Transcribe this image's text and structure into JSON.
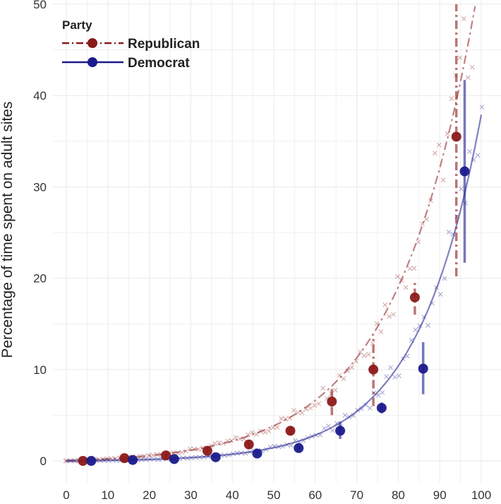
{
  "chart_data": {
    "type": "scatter",
    "title": "",
    "xlabel": "",
    "ylabel": "Percentage of time spent on adult sites",
    "xlim": [
      -3,
      103
    ],
    "ylim": [
      -2,
      50
    ],
    "x_ticks": [
      0,
      10,
      20,
      30,
      40,
      50,
      60,
      70,
      80,
      90,
      100
    ],
    "y_ticks": [
      0,
      10,
      20,
      30,
      40,
      50
    ],
    "grid": true,
    "legend": {
      "title": "Party",
      "placement": "top-left",
      "entries": [
        "Republican",
        "Democrat"
      ]
    },
    "series": [
      {
        "name": "Republican",
        "color": "#8b1a1a",
        "line_style": "dash-dot",
        "points": [
          {
            "x": 4,
            "y": 0.0,
            "err": [
              0.0,
              0.0
            ]
          },
          {
            "x": 14,
            "y": 0.3,
            "err": [
              0.2,
              0.4
            ]
          },
          {
            "x": 24,
            "y": 0.6,
            "err": [
              0.4,
              0.8
            ]
          },
          {
            "x": 34,
            "y": 1.1,
            "err": [
              0.8,
              1.4
            ]
          },
          {
            "x": 44,
            "y": 1.8,
            "err": [
              1.4,
              2.2
            ]
          },
          {
            "x": 54,
            "y": 3.3,
            "err": [
              2.8,
              3.8
            ]
          },
          {
            "x": 64,
            "y": 6.5,
            "err": [
              5.0,
              8.0
            ]
          },
          {
            "x": 74,
            "y": 10.0,
            "err": [
              6.0,
              13.8
            ]
          },
          {
            "x": 84,
            "y": 17.9,
            "err": [
              16.0,
              19.8
            ]
          },
          {
            "x": 94,
            "y": 35.5,
            "err": [
              20.2,
              50.0
            ]
          }
        ],
        "fit": {
          "a": 0.32,
          "b": 0.0513
        },
        "raw_y_ratio": 1.0
      },
      {
        "name": "Democrat",
        "color": "#1a1a8c",
        "line_style": "solid",
        "points": [
          {
            "x": 6,
            "y": 0.0,
            "err": [
              0.0,
              0.0
            ]
          },
          {
            "x": 16,
            "y": 0.1,
            "err": [
              0.0,
              0.2
            ]
          },
          {
            "x": 26,
            "y": 0.2,
            "err": [
              0.1,
              0.3
            ]
          },
          {
            "x": 36,
            "y": 0.4,
            "err": [
              0.3,
              0.5
            ]
          },
          {
            "x": 46,
            "y": 0.8,
            "err": [
              0.6,
              1.0
            ]
          },
          {
            "x": 56,
            "y": 1.4,
            "err": [
              1.1,
              1.7
            ]
          },
          {
            "x": 66,
            "y": 3.3,
            "err": [
              2.4,
              4.3
            ]
          },
          {
            "x": 76,
            "y": 5.8,
            "err": [
              5.2,
              6.4
            ]
          },
          {
            "x": 86,
            "y": 10.1,
            "err": [
              7.3,
              13.0
            ]
          },
          {
            "x": 96,
            "y": 31.7,
            "err": [
              21.7,
              41.7
            ]
          }
        ],
        "fit": {
          "a": 0.06,
          "b": 0.0645
        },
        "raw_y_ratio": 1.0
      }
    ]
  }
}
